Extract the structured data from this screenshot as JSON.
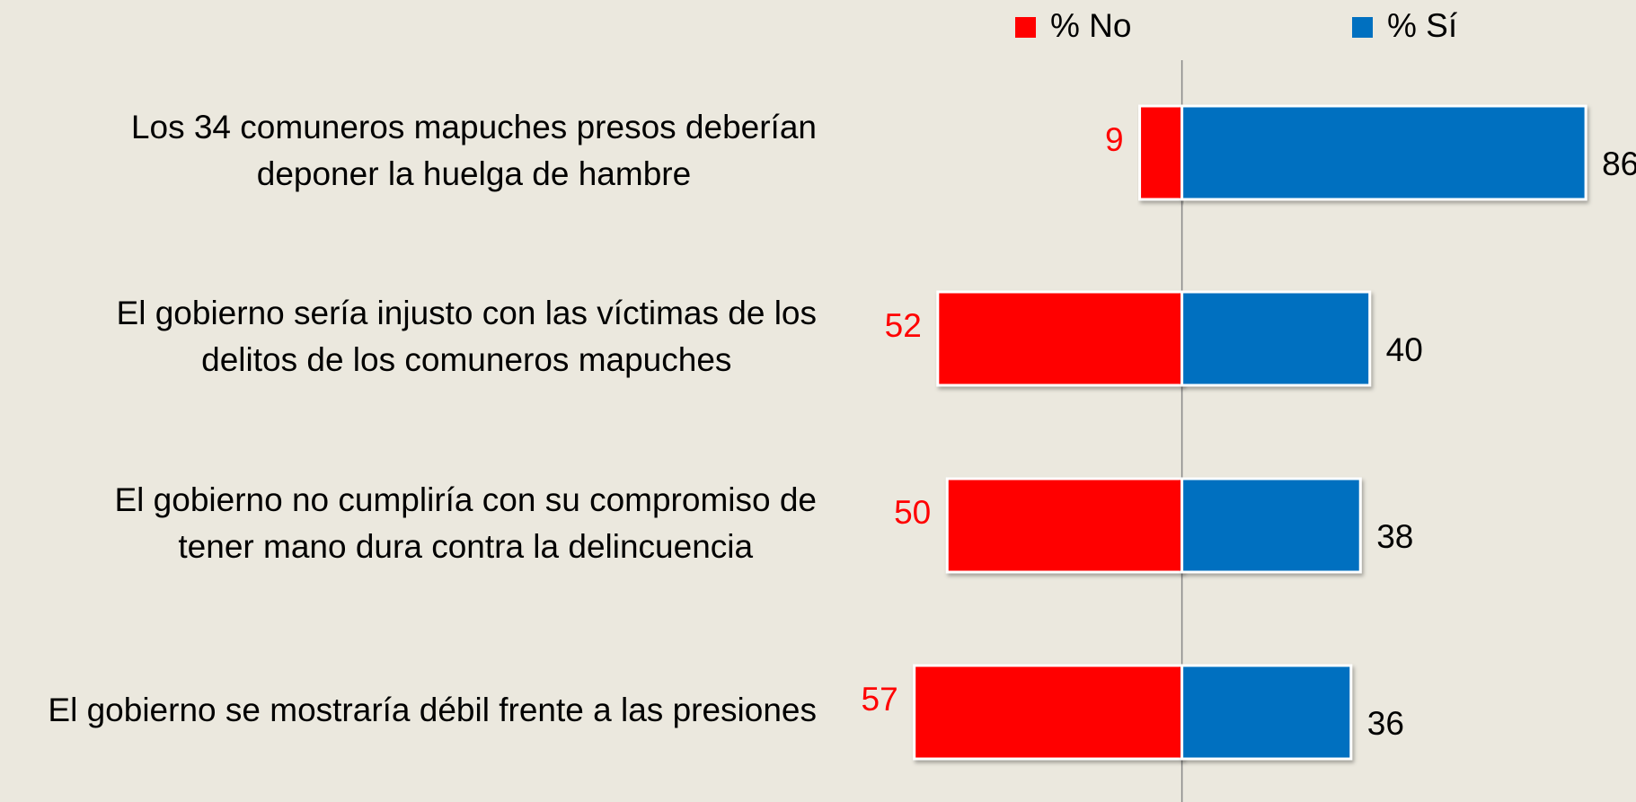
{
  "chart_data": {
    "type": "diverging-bar",
    "categories": [
      [
        "Los 34 comuneros mapuches presos deberían",
        "deponer la huelga de hambre"
      ],
      [
        "El gobierno sería injusto con las víctimas de los",
        "delitos de los comuneros mapuches"
      ],
      [
        "El gobierno no cumpliría con su compromiso de",
        "tener mano dura contra la delincuencia"
      ],
      [
        "El gobierno se mostraría débil frente a las presiones"
      ]
    ],
    "series": [
      {
        "name": "% No",
        "color": "#ff0000",
        "values": [
          9,
          52,
          50,
          57
        ]
      },
      {
        "name": "% Sí",
        "color": "#0070c0",
        "values": [
          86,
          40,
          38,
          36
        ]
      }
    ],
    "xlim": [
      -60,
      90
    ]
  }
}
